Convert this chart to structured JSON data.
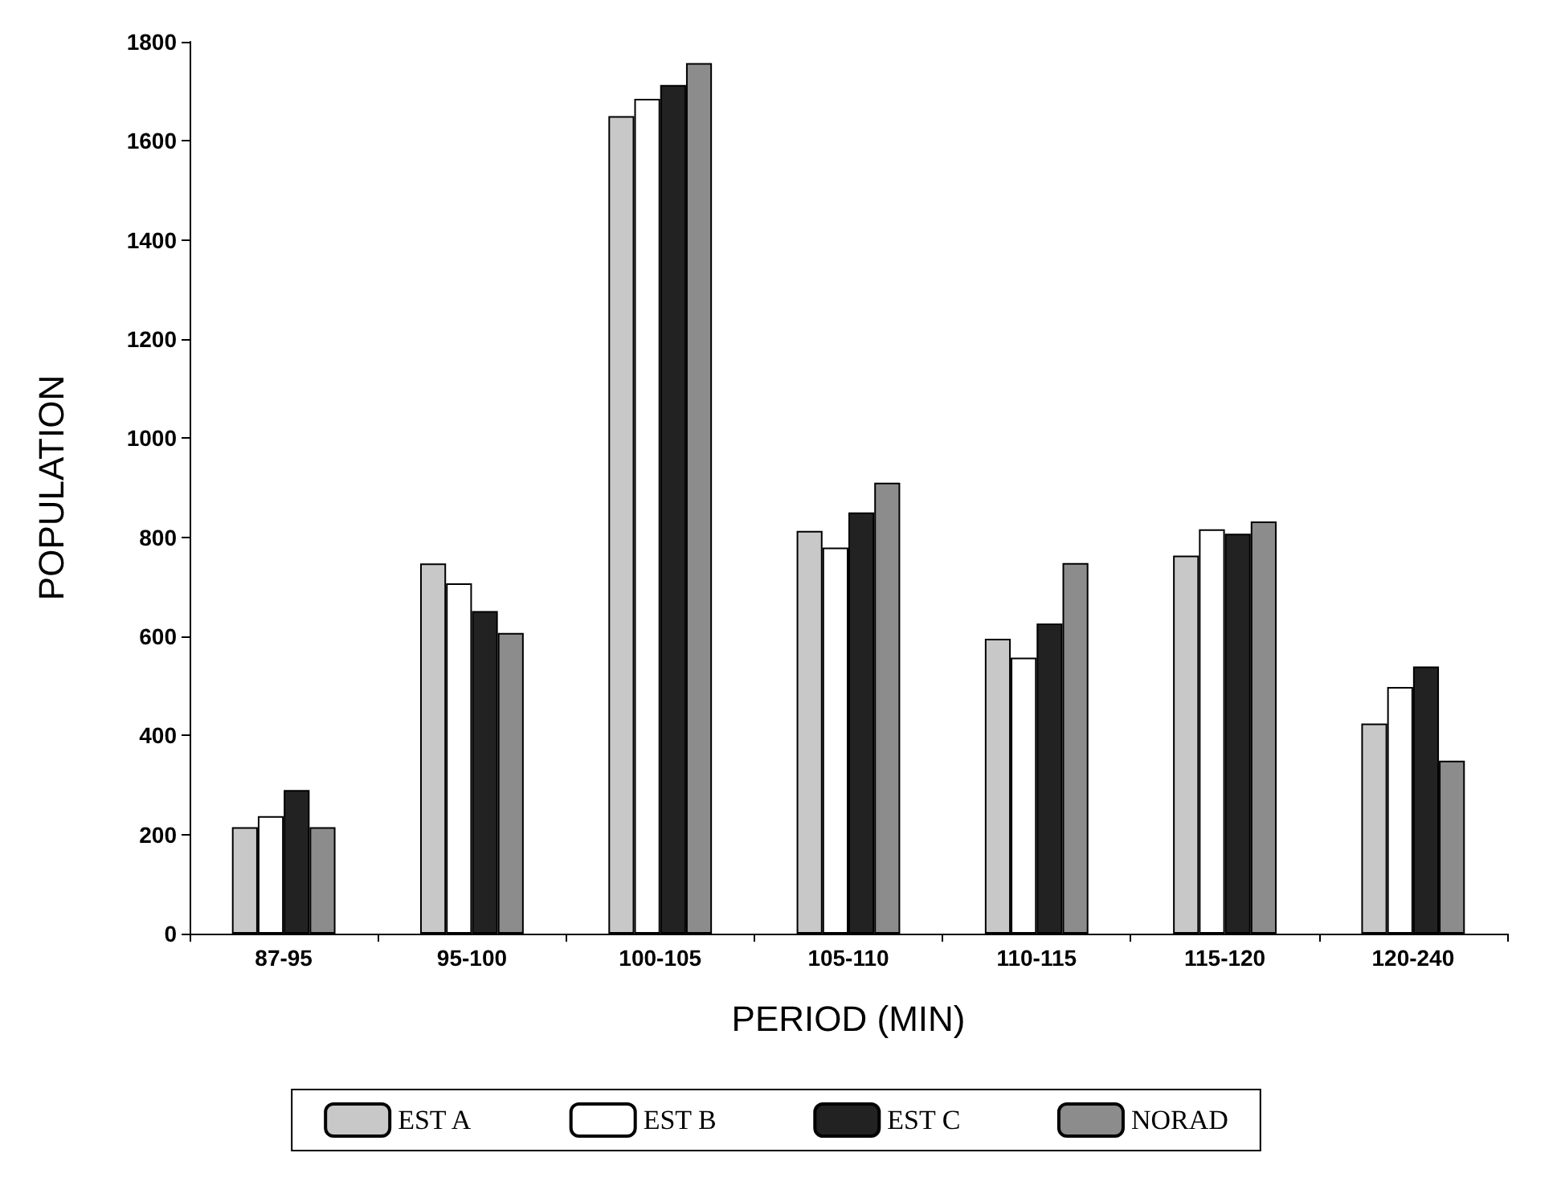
{
  "chart_data": {
    "type": "bar",
    "xlabel": "PERIOD (MIN)",
    "ylabel": "POPULATION",
    "categories": [
      "87-95",
      "95-100",
      "100-105",
      "105-110",
      "110-115",
      "115-120",
      "120-240"
    ],
    "series": [
      {
        "name": "EST A",
        "color": "#c8c8c8",
        "values": [
          215,
          747,
          1650,
          813,
          595,
          763,
          424
        ]
      },
      {
        "name": "EST B",
        "color": "#ffffff",
        "values": [
          237,
          707,
          1685,
          779,
          557,
          816,
          498
        ]
      },
      {
        "name": "EST C",
        "color": "#222222",
        "values": [
          290,
          651,
          1713,
          850,
          626,
          807,
          539
        ]
      },
      {
        "name": "NORAD",
        "color": "#8c8c8c",
        "values": [
          215,
          607,
          1757,
          910,
          748,
          832,
          349
        ]
      }
    ],
    "ylim": [
      0,
      1800
    ],
    "yticks": [
      0,
      200,
      400,
      600,
      800,
      1000,
      1200,
      1400,
      1600,
      1800
    ],
    "grid": false,
    "legend": "bottom"
  }
}
